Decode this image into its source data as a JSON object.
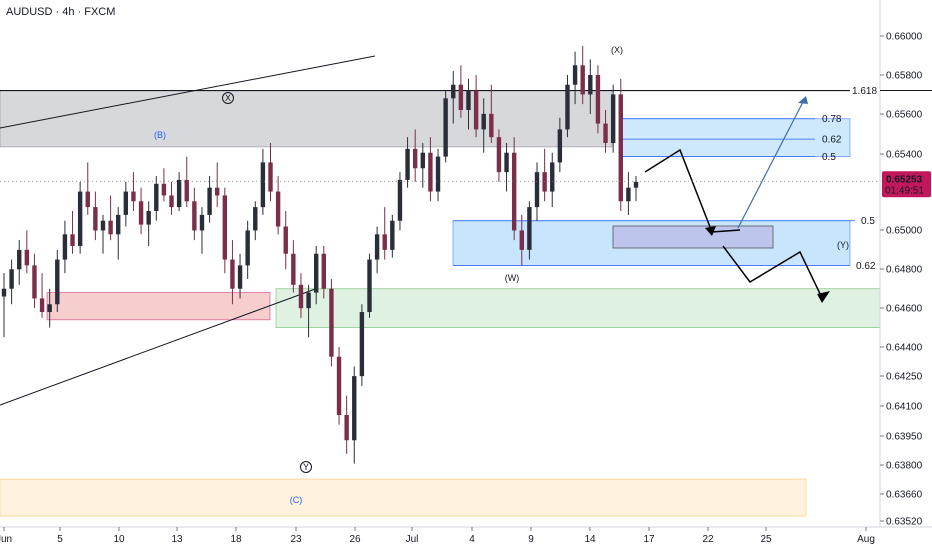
{
  "header": {
    "title": "AUDUSD · 4h · FXCM"
  },
  "colors": {
    "bull": "#2a2e39",
    "bear": "#7b2e4a",
    "fib_line": "#131722",
    "price_badge": "#c2185b",
    "zone_grey": "#9598a1",
    "zone_blue": "#2196f3",
    "zone_pink": "#e57373",
    "zone_green": "#81c784",
    "zone_orange": "#ffcc80",
    "arrow_blue": "#3f6fa8"
  },
  "chart_data": {
    "type": "candlestick",
    "symbol": "AUDUSD",
    "timeframe": "4h",
    "source": "FXCM",
    "y_ticks": [
      "0.66000",
      "0.65800",
      "0.65600",
      "0.65400",
      "0.65000",
      "0.64800",
      "0.64600",
      "0.64400",
      "0.64250",
      "0.64100",
      "0.63950",
      "0.63800",
      "0.63660",
      "0.63520"
    ],
    "x_ticks": [
      "Jun",
      "5",
      "10",
      "13",
      "18",
      "23",
      "26",
      "Jul",
      "4",
      "9",
      "14",
      "17",
      "22",
      "25",
      "Aug"
    ],
    "last_price": "0.65253",
    "countdown": "01:49:51",
    "fib_levels": [
      {
        "label": "1.618",
        "price": 0.6572
      },
      {
        "label": "0.78",
        "price": 0.65575
      },
      {
        "label": "0.62",
        "price": 0.6547
      },
      {
        "label": "0.5",
        "price": 0.6538
      },
      {
        "label": "0.5",
        "price": 0.6505
      },
      {
        "label": "0.62",
        "price": 0.6482
      }
    ],
    "zones": [
      {
        "type": "grey",
        "from": 0.6572,
        "to": 0.6543
      },
      {
        "type": "blue",
        "from": 0.6505,
        "to": 0.6482
      },
      {
        "type": "light-blue",
        "from": 0.65575,
        "to": 0.6538
      },
      {
        "type": "pink",
        "from": 0.6468,
        "to": 0.6454
      },
      {
        "type": "green",
        "from": 0.647,
        "to": 0.645
      },
      {
        "type": "orange",
        "from": 0.6372,
        "to": 0.6353
      }
    ],
    "wave_labels": [
      "X",
      "(B)",
      "Y",
      "(C)",
      "(W)",
      "(X)",
      "(Y)"
    ],
    "candles": [
      {
        "o": 0.6466,
        "h": 0.6478,
        "l": 0.6445,
        "c": 0.647
      },
      {
        "o": 0.647,
        "h": 0.6485,
        "l": 0.6462,
        "c": 0.648
      },
      {
        "o": 0.648,
        "h": 0.6495,
        "l": 0.6472,
        "c": 0.649
      },
      {
        "o": 0.649,
        "h": 0.65,
        "l": 0.6478,
        "c": 0.6482
      },
      {
        "o": 0.6482,
        "h": 0.6488,
        "l": 0.646,
        "c": 0.6465
      },
      {
        "o": 0.6465,
        "h": 0.6478,
        "l": 0.6455,
        "c": 0.6458
      },
      {
        "o": 0.6458,
        "h": 0.647,
        "l": 0.645,
        "c": 0.6462
      },
      {
        "o": 0.6462,
        "h": 0.649,
        "l": 0.6458,
        "c": 0.6485
      },
      {
        "o": 0.6485,
        "h": 0.6505,
        "l": 0.6478,
        "c": 0.6498
      },
      {
        "o": 0.6498,
        "h": 0.651,
        "l": 0.6488,
        "c": 0.6492
      },
      {
        "o": 0.6492,
        "h": 0.6525,
        "l": 0.6488,
        "c": 0.652
      },
      {
        "o": 0.652,
        "h": 0.6535,
        "l": 0.6508,
        "c": 0.6512
      },
      {
        "o": 0.6512,
        "h": 0.652,
        "l": 0.6495,
        "c": 0.65
      },
      {
        "o": 0.65,
        "h": 0.6508,
        "l": 0.6488,
        "c": 0.6505
      },
      {
        "o": 0.6505,
        "h": 0.6518,
        "l": 0.6495,
        "c": 0.6498
      },
      {
        "o": 0.6498,
        "h": 0.6512,
        "l": 0.6485,
        "c": 0.6508
      },
      {
        "o": 0.6508,
        "h": 0.6525,
        "l": 0.6502,
        "c": 0.652
      },
      {
        "o": 0.652,
        "h": 0.653,
        "l": 0.651,
        "c": 0.6515
      },
      {
        "o": 0.6515,
        "h": 0.6522,
        "l": 0.6498,
        "c": 0.6503
      },
      {
        "o": 0.6503,
        "h": 0.6515,
        "l": 0.6492,
        "c": 0.651
      },
      {
        "o": 0.651,
        "h": 0.6528,
        "l": 0.6505,
        "c": 0.6524
      },
      {
        "o": 0.6524,
        "h": 0.6532,
        "l": 0.6515,
        "c": 0.6518
      },
      {
        "o": 0.6518,
        "h": 0.6525,
        "l": 0.6508,
        "c": 0.6512
      },
      {
        "o": 0.6512,
        "h": 0.653,
        "l": 0.651,
        "c": 0.6526
      },
      {
        "o": 0.6526,
        "h": 0.6538,
        "l": 0.6512,
        "c": 0.6515
      },
      {
        "o": 0.6515,
        "h": 0.6522,
        "l": 0.6495,
        "c": 0.65
      },
      {
        "o": 0.65,
        "h": 0.6512,
        "l": 0.6488,
        "c": 0.6508
      },
      {
        "o": 0.6508,
        "h": 0.6528,
        "l": 0.6504,
        "c": 0.6522
      },
      {
        "o": 0.6522,
        "h": 0.6535,
        "l": 0.6512,
        "c": 0.6518
      },
      {
        "o": 0.6518,
        "h": 0.6522,
        "l": 0.6478,
        "c": 0.6485
      },
      {
        "o": 0.6485,
        "h": 0.6495,
        "l": 0.6462,
        "c": 0.647
      },
      {
        "o": 0.647,
        "h": 0.6488,
        "l": 0.6465,
        "c": 0.6482
      },
      {
        "o": 0.6482,
        "h": 0.6505,
        "l": 0.6475,
        "c": 0.65
      },
      {
        "o": 0.65,
        "h": 0.6515,
        "l": 0.6495,
        "c": 0.6512
      },
      {
        "o": 0.6512,
        "h": 0.6542,
        "l": 0.6508,
        "c": 0.6535
      },
      {
        "o": 0.6535,
        "h": 0.6545,
        "l": 0.6515,
        "c": 0.652
      },
      {
        "o": 0.652,
        "h": 0.6528,
        "l": 0.6498,
        "c": 0.6502
      },
      {
        "o": 0.6502,
        "h": 0.651,
        "l": 0.648,
        "c": 0.6488
      },
      {
        "o": 0.6488,
        "h": 0.6495,
        "l": 0.6468,
        "c": 0.6472
      },
      {
        "o": 0.6472,
        "h": 0.6478,
        "l": 0.6455,
        "c": 0.646
      },
      {
        "o": 0.646,
        "h": 0.6472,
        "l": 0.6445,
        "c": 0.6468
      },
      {
        "o": 0.6468,
        "h": 0.6492,
        "l": 0.6462,
        "c": 0.6488
      },
      {
        "o": 0.6488,
        "h": 0.6492,
        "l": 0.6465,
        "c": 0.647
      },
      {
        "o": 0.647,
        "h": 0.6475,
        "l": 0.643,
        "c": 0.6435
      },
      {
        "o": 0.6435,
        "h": 0.644,
        "l": 0.64,
        "c": 0.6405
      },
      {
        "o": 0.6405,
        "h": 0.6415,
        "l": 0.6385,
        "c": 0.6392
      },
      {
        "o": 0.6392,
        "h": 0.643,
        "l": 0.638,
        "c": 0.6425
      },
      {
        "o": 0.6425,
        "h": 0.6462,
        "l": 0.642,
        "c": 0.6458
      },
      {
        "o": 0.6458,
        "h": 0.6488,
        "l": 0.6455,
        "c": 0.6485
      },
      {
        "o": 0.6485,
        "h": 0.6502,
        "l": 0.6478,
        "c": 0.6498
      },
      {
        "o": 0.6498,
        "h": 0.6512,
        "l": 0.6485,
        "c": 0.649
      },
      {
        "o": 0.649,
        "h": 0.6508,
        "l": 0.6486,
        "c": 0.6505
      },
      {
        "o": 0.6505,
        "h": 0.653,
        "l": 0.65,
        "c": 0.6526
      },
      {
        "o": 0.6526,
        "h": 0.6548,
        "l": 0.6522,
        "c": 0.6542
      },
      {
        "o": 0.6542,
        "h": 0.6552,
        "l": 0.6525,
        "c": 0.6532
      },
      {
        "o": 0.6532,
        "h": 0.6545,
        "l": 0.6522,
        "c": 0.654
      },
      {
        "o": 0.654,
        "h": 0.6548,
        "l": 0.6515,
        "c": 0.652
      },
      {
        "o": 0.652,
        "h": 0.6542,
        "l": 0.6515,
        "c": 0.6538
      },
      {
        "o": 0.6538,
        "h": 0.6572,
        "l": 0.6535,
        "c": 0.6568
      },
      {
        "o": 0.6568,
        "h": 0.6582,
        "l": 0.6555,
        "c": 0.6575
      },
      {
        "o": 0.6575,
        "h": 0.6585,
        "l": 0.6558,
        "c": 0.6562
      },
      {
        "o": 0.6562,
        "h": 0.6578,
        "l": 0.6552,
        "c": 0.6572
      },
      {
        "o": 0.6572,
        "h": 0.658,
        "l": 0.6548,
        "c": 0.6552
      },
      {
        "o": 0.6552,
        "h": 0.6568,
        "l": 0.654,
        "c": 0.656
      },
      {
        "o": 0.656,
        "h": 0.6575,
        "l": 0.6545,
        "c": 0.6548
      },
      {
        "o": 0.6548,
        "h": 0.6552,
        "l": 0.6525,
        "c": 0.653
      },
      {
        "o": 0.653,
        "h": 0.6545,
        "l": 0.652,
        "c": 0.654
      },
      {
        "o": 0.654,
        "h": 0.6548,
        "l": 0.6495,
        "c": 0.65
      },
      {
        "o": 0.65,
        "h": 0.6508,
        "l": 0.6482,
        "c": 0.649
      },
      {
        "o": 0.649,
        "h": 0.6515,
        "l": 0.6485,
        "c": 0.6512
      },
      {
        "o": 0.6512,
        "h": 0.6535,
        "l": 0.6505,
        "c": 0.653
      },
      {
        "o": 0.653,
        "h": 0.6542,
        "l": 0.6515,
        "c": 0.652
      },
      {
        "o": 0.652,
        "h": 0.654,
        "l": 0.6512,
        "c": 0.6535
      },
      {
        "o": 0.6535,
        "h": 0.6558,
        "l": 0.653,
        "c": 0.6552
      },
      {
        "o": 0.6552,
        "h": 0.658,
        "l": 0.6548,
        "c": 0.6575
      },
      {
        "o": 0.6575,
        "h": 0.6592,
        "l": 0.6565,
        "c": 0.6585
      },
      {
        "o": 0.6585,
        "h": 0.6595,
        "l": 0.6565,
        "c": 0.657
      },
      {
        "o": 0.657,
        "h": 0.6588,
        "l": 0.656,
        "c": 0.658
      },
      {
        "o": 0.658,
        "h": 0.6585,
        "l": 0.655,
        "c": 0.6555
      },
      {
        "o": 0.6555,
        "h": 0.6562,
        "l": 0.654,
        "c": 0.6545
      },
      {
        "o": 0.6545,
        "h": 0.6575,
        "l": 0.654,
        "c": 0.657
      },
      {
        "o": 0.657,
        "h": 0.6578,
        "l": 0.651,
        "c": 0.6515
      },
      {
        "o": 0.6515,
        "h": 0.653,
        "l": 0.6508,
        "c": 0.6522
      },
      {
        "o": 0.6522,
        "h": 0.6528,
        "l": 0.6515,
        "c": 0.6525
      }
    ]
  }
}
